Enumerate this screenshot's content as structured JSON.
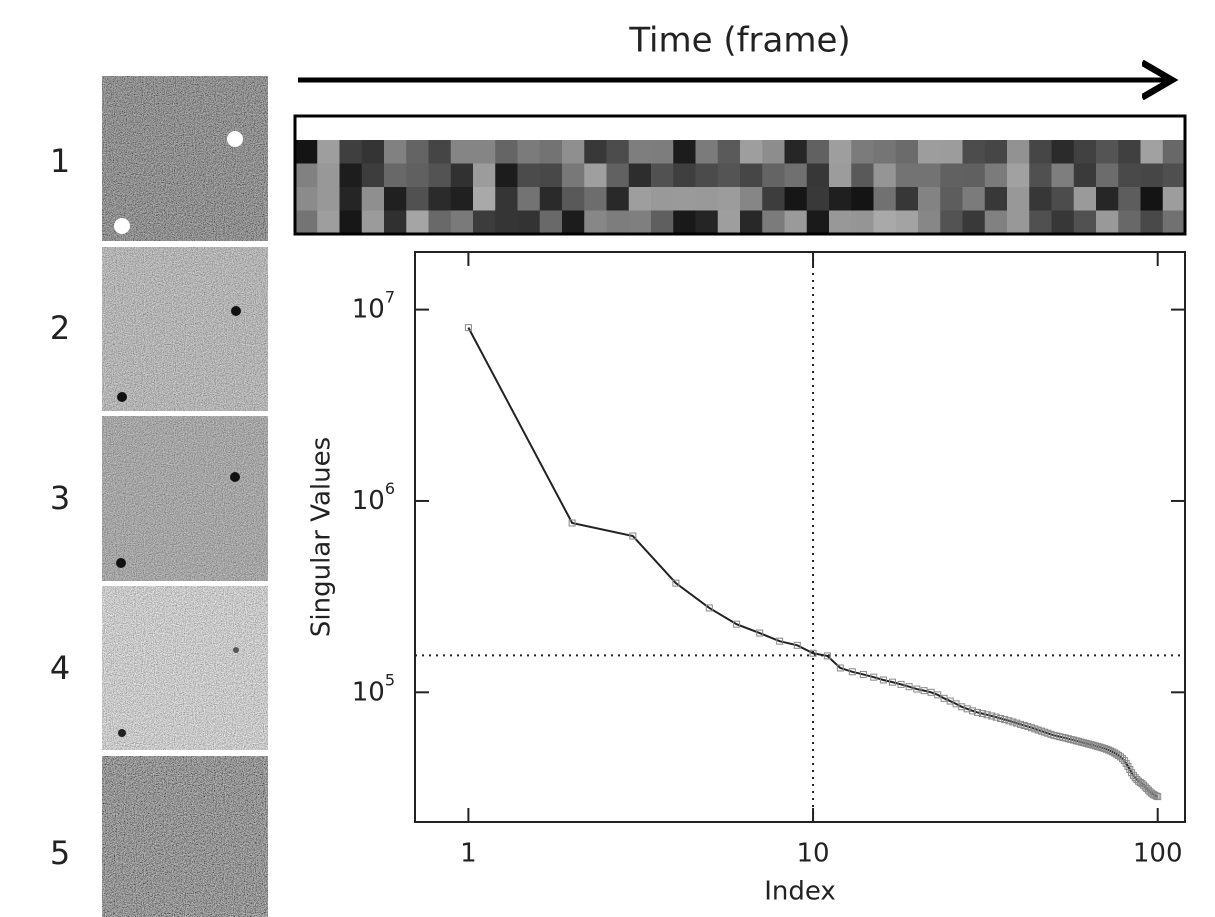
{
  "chart_data": {
    "type": "line",
    "title": "Time (frame)",
    "xlabel": "Index",
    "ylabel": "Singular Values",
    "row_labels": [
      "1",
      "2",
      "3",
      "4",
      "5"
    ],
    "log_x": true,
    "log_y": true,
    "xlim": [
      0.7,
      120
    ],
    "ylim": [
      21000,
      20000000
    ],
    "xticks": [
      1,
      10,
      100
    ],
    "yticks": [
      {
        "value": 100000,
        "label": "10",
        "exponent": "5"
      },
      {
        "value": 1000000,
        "label": "10",
        "exponent": "6"
      },
      {
        "value": 10000000,
        "label": "10",
        "exponent": "7"
      }
    ],
    "reference_lines": {
      "x": 10,
      "y": 156000
    },
    "x": [
      1,
      2,
      3,
      4,
      5,
      6,
      7,
      8,
      9,
      10,
      11,
      12,
      13,
      14,
      15,
      16,
      17,
      18,
      19,
      20,
      21,
      22,
      23,
      24,
      25,
      26,
      27,
      28,
      29,
      30,
      31,
      32,
      33,
      34,
      35,
      36,
      37,
      38,
      39,
      40,
      41,
      42,
      43,
      44,
      45,
      46,
      47,
      48,
      49,
      50,
      51,
      52,
      53,
      54,
      55,
      56,
      57,
      58,
      59,
      60,
      61,
      62,
      63,
      64,
      65,
      66,
      67,
      68,
      69,
      70,
      71,
      72,
      73,
      74,
      75,
      76,
      77,
      78,
      79,
      80,
      81,
      82,
      83,
      84,
      85,
      86,
      87,
      88,
      89,
      90,
      91,
      92,
      93,
      94,
      95,
      96,
      97,
      98,
      99,
      100
    ],
    "series": [
      {
        "color": "#222222",
        "marker_color": "#888888",
        "values": [
          8050000,
          767000,
          656000,
          372000,
          276000,
          227000,
          204000,
          185000,
          176000,
          160000,
          155000,
          134000,
          128000,
          124000,
          120000,
          116000,
          113000,
          110000,
          107000,
          104000,
          102000,
          100000,
          97000,
          93000,
          90000,
          87000,
          84000,
          82000,
          80000,
          78500,
          77400,
          76300,
          75200,
          74100,
          73000,
          72000,
          71000,
          70000,
          69000,
          68000,
          67100,
          66200,
          65300,
          64400,
          63500,
          62700,
          61900,
          61100,
          60300,
          59600,
          59100,
          58600,
          58100,
          57700,
          57200,
          56700,
          56300,
          55800,
          55400,
          54900,
          54500,
          54100,
          53700,
          53300,
          52900,
          52500,
          52100,
          51700,
          51300,
          50900,
          50400,
          49900,
          49400,
          48800,
          48200,
          47500,
          46800,
          46000,
          45000,
          44000,
          42500,
          41000,
          39500,
          38000,
          36800,
          35800,
          35000,
          34300,
          33800,
          33300,
          32700,
          32000,
          31400,
          30800,
          30200,
          29700,
          29300,
          29000,
          28700,
          28500
        ]
      }
    ]
  }
}
